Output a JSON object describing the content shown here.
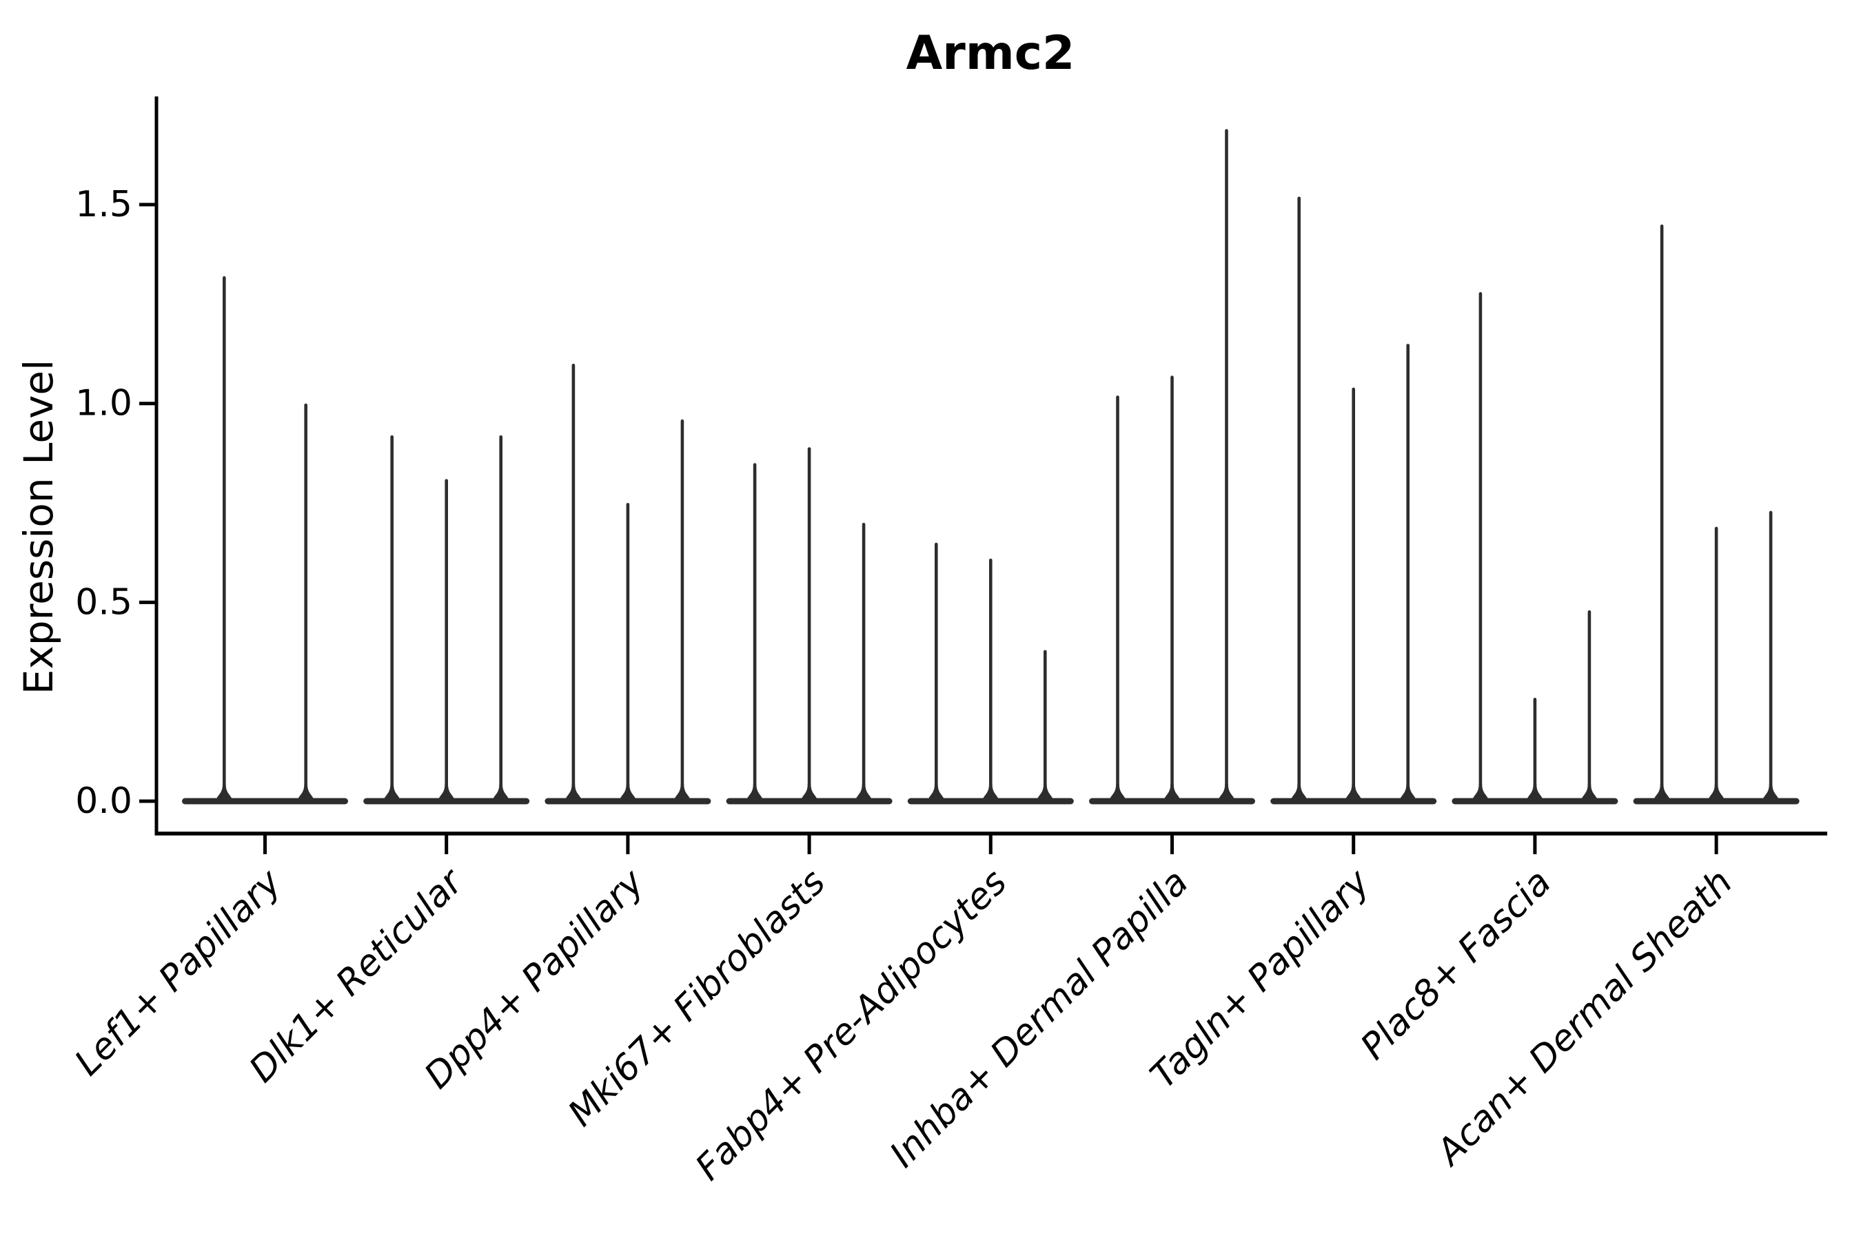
{
  "chart_data": {
    "type": "violin",
    "title": "Armc2",
    "xlabel": "",
    "ylabel": "Expression Level",
    "legend": "none",
    "grid": false,
    "background_color": "#ffffff",
    "axis_color": "#000000",
    "violin_color": "#2d2d2d",
    "ylim": [
      0.0,
      1.77
    ],
    "ytick_values": [
      0.0,
      0.5,
      1.0,
      1.5
    ],
    "ytick_labels": [
      "0.0",
      "0.5",
      "1.0",
      "1.5"
    ],
    "categories": [
      "Lef1+ Papillary",
      "Dlk1+ Reticular",
      "Dpp4+ Papillary",
      "Mki67+ Fibroblasts",
      "Fabp4+ Pre-Adipocytes",
      "Inhba+ Dermal Papilla",
      "Tagln+ Papillary",
      "Plac8+ Fascia",
      "Acan+ Dermal Sheath"
    ],
    "series_note": "Each category shows narrow zero-inflated violins; values are the max expression (spike tip) of each violin, left to right.",
    "violin_maxima": [
      [
        1.32,
        1.0
      ],
      [
        0.92,
        0.81,
        0.92
      ],
      [
        1.1,
        0.75,
        0.96
      ],
      [
        0.85,
        0.89,
        0.7
      ],
      [
        0.65,
        0.61,
        0.38
      ],
      [
        1.02,
        1.07,
        1.69
      ],
      [
        1.52,
        1.04,
        1.15
      ],
      [
        1.28,
        0.26,
        0.48
      ],
      [
        1.45,
        0.69,
        0.73
      ]
    ]
  }
}
